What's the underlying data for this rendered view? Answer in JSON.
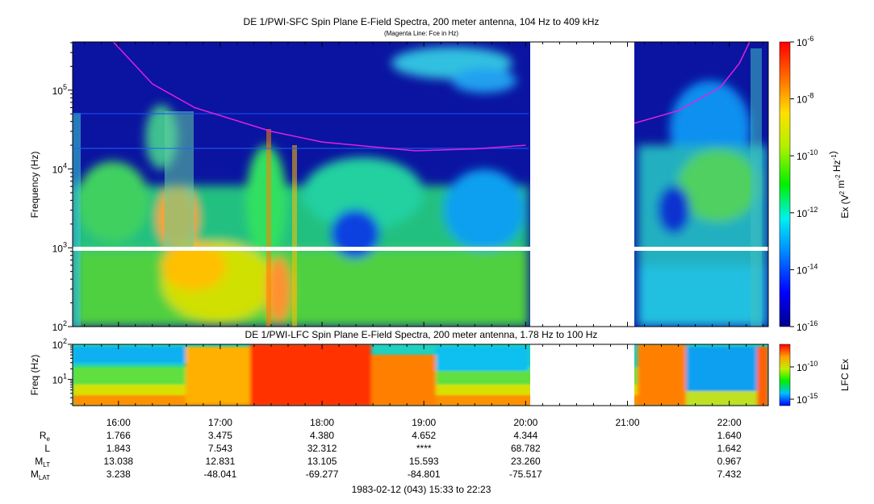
{
  "chart_data": [
    {
      "type": "heatmap",
      "title": "DE 1/PWI-SFC  Spin Plane E-Field Spectra, 200 meter antenna, 104 Hz to 409 kHz",
      "subtitle": "(Magenta Line: Fce in Hz)",
      "ylabel": "Frequency (Hz)",
      "y_scale": "log",
      "ylim": [
        100,
        409000
      ],
      "y_ticks": [
        "10^2",
        "10^3",
        "10^4",
        "10^5"
      ],
      "x_range": [
        "15:33",
        "22:23"
      ],
      "colorbar": {
        "label": "Ex (V^2 m^-2 Hz^-1)",
        "scale": "log",
        "range": [
          "1e-16",
          "1e-6"
        ],
        "ticks": [
          "10^-6",
          "10^-8",
          "10^-10",
          "10^-12",
          "10^-14",
          "10^-16"
        ]
      },
      "data_gaps": [
        [
          "20:00",
          "21:04"
        ]
      ],
      "fce_line": {
        "name": "Fce",
        "color": "#e020e0",
        "segments": [
          [
            [
              "15:57",
              409000
            ],
            [
              "16:20",
              120000
            ],
            [
              "16:45",
              60000
            ],
            [
              "17:30",
              30000
            ],
            [
              "18:00",
              22000
            ],
            [
              "18:55",
              17000
            ],
            [
              "19:30",
              18000
            ],
            [
              "20:00",
              20000
            ]
          ],
          [
            [
              "21:04",
              38000
            ],
            [
              "21:30",
              55000
            ],
            [
              "21:55",
              110000
            ],
            [
              "22:06",
              220000
            ],
            [
              "22:12",
              409000
            ]
          ]
        ]
      }
    },
    {
      "type": "heatmap",
      "title": "DE 1/PWI-LFC  Spin Plane E-Field Spectra, 200 meter antenna, 1.78 Hz to 100 Hz",
      "ylabel": "Freq (Hz)",
      "y_scale": "log",
      "ylim": [
        1.78,
        100
      ],
      "y_ticks": [
        "10^1",
        "10^2"
      ],
      "colorbar": {
        "label": "LFC Ex",
        "scale": "log",
        "ticks": [
          "10^-10",
          "10^-15"
        ]
      },
      "data_gaps": [
        [
          "20:00",
          "21:04"
        ]
      ]
    }
  ],
  "x_axis": {
    "ticks": [
      "16:00",
      "17:00",
      "18:00",
      "19:00",
      "20:00",
      "21:00",
      "22:00"
    ],
    "footer": "1983-02-12 (043) 15:33 to 22:23"
  },
  "ephemeris": {
    "rows": [
      {
        "label": "R",
        "sub": "e",
        "values": [
          "1.766",
          "3.475",
          "4.380",
          "4.652",
          "4.344",
          "",
          "1.640"
        ]
      },
      {
        "label": "L",
        "sub": "",
        "values": [
          "1.843",
          "7.543",
          "32.312",
          "****",
          "68.782",
          "",
          "1.642"
        ]
      },
      {
        "label": "M",
        "sub": "LT",
        "values": [
          "13.038",
          "12.831",
          "13.105",
          "15.593",
          "23.260",
          "",
          "0.967"
        ]
      },
      {
        "label": "M",
        "sub": "LAT",
        "values": [
          "3.238",
          "-48.041",
          "-69.277",
          "-84.801",
          "-75.517",
          "",
          "7.432"
        ]
      }
    ]
  },
  "colors": {
    "background": "#0a14a0",
    "line": "#e020e0",
    "gap": "#ffffff"
  }
}
